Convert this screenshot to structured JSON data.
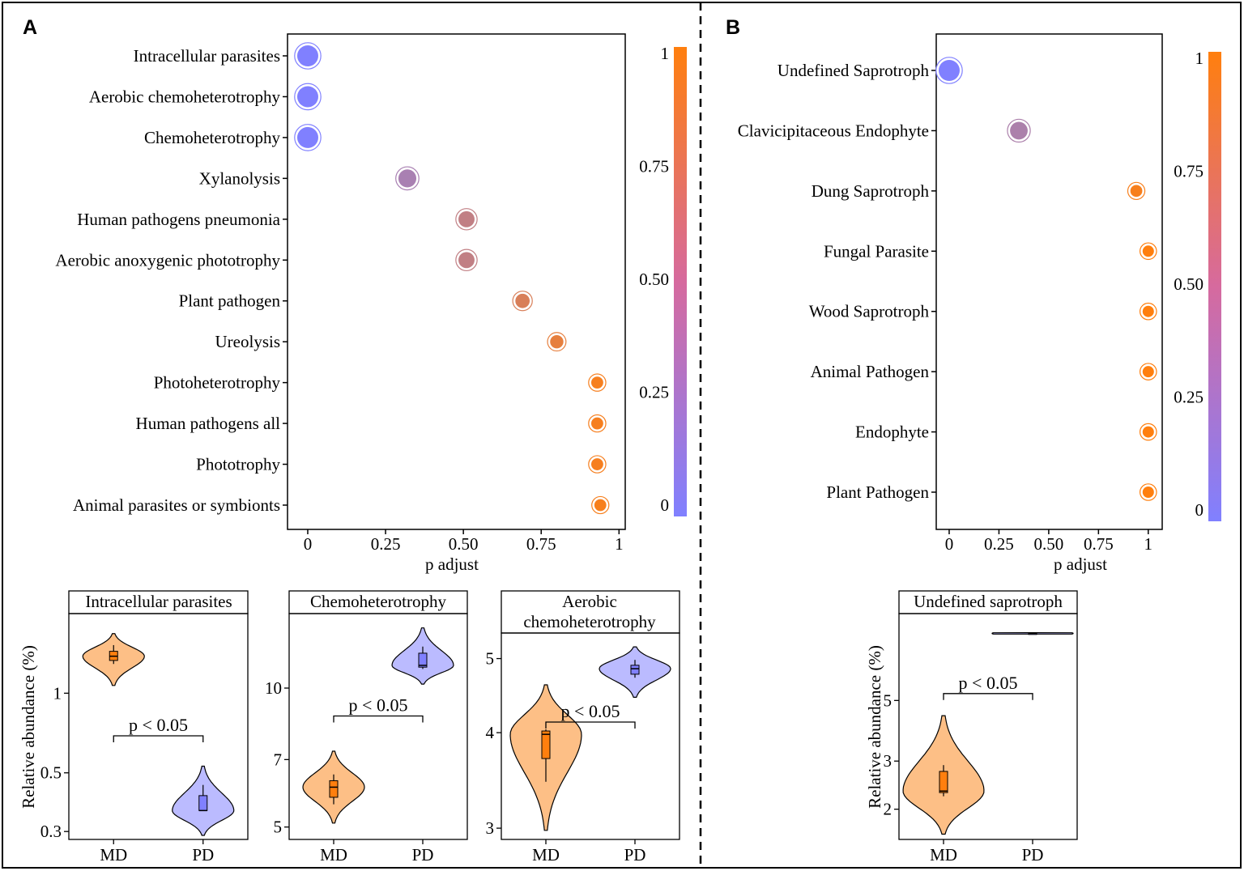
{
  "panels": [
    {
      "letter": "A"
    },
    {
      "letter": "B"
    }
  ],
  "colors": {
    "low": "#8080FF",
    "high": "#FF7F0E",
    "violin_md": "#FDBF86",
    "violin_pd": "#BBBBFF",
    "box_md": "#FF7F0E",
    "box_pd": "#8080FF"
  },
  "chart_data": [
    {
      "id": "dotA",
      "type": "scatter",
      "panel": "A",
      "xlabel": "p adjust",
      "xlim": [
        -0.065,
        1.02
      ],
      "xticks": [
        0,
        0.25,
        0.5,
        0.75,
        1
      ],
      "xtick_labels": [
        "0",
        "0.25",
        "0.50",
        "0.75",
        "1"
      ],
      "categories": [
        "Intracellular parasites",
        "Aerobic chemoheterotrophy",
        "Chemoheterotrophy",
        "Xylanolysis",
        "Human pathogens pneumonia",
        "Aerobic anoxygenic phototrophy",
        "Plant pathogen",
        "Ureolysis",
        "Photoheterotrophy",
        "Human pathogens all",
        "Phototrophy",
        "Animal parasites or symbionts"
      ],
      "values": [
        0,
        0,
        0,
        0.32,
        0.51,
        0.51,
        0.69,
        0.8,
        0.93,
        0.93,
        0.93,
        0.94
      ],
      "colorbar": {
        "ticks": [
          0,
          0.25,
          0.5,
          0.75,
          1
        ],
        "labels": [
          "0",
          "0.25",
          "0.50",
          "0.75",
          "1"
        ]
      }
    },
    {
      "id": "dotB",
      "type": "scatter",
      "panel": "B",
      "xlabel": "p adjust",
      "xlim": [
        -0.065,
        1.07
      ],
      "xticks": [
        0,
        0.25,
        0.5,
        0.75,
        1
      ],
      "xtick_labels": [
        "0",
        "0.25",
        "0.50",
        "0.75",
        "1"
      ],
      "categories": [
        "Undefined Saprotroph",
        "Clavicipitaceous Endophyte",
        "Dung Saprotroph",
        "Fungal Parasite",
        "Wood Saprotroph",
        "Animal Pathogen",
        "Endophyte",
        "Plant Pathogen"
      ],
      "values": [
        0,
        0.35,
        0.94,
        1,
        1,
        1,
        1,
        1
      ],
      "colorbar": {
        "ticks": [
          0,
          0.25,
          0.5,
          0.75,
          1
        ],
        "labels": [
          "0",
          "0.25",
          "0.50",
          "0.75",
          "1"
        ]
      }
    },
    {
      "id": "vio1",
      "type": "violin",
      "panel": "A",
      "title": "Intracellular parasites",
      "ylabel": "Relative abundance (%)",
      "categories": [
        "MD",
        "PD"
      ],
      "ylim": [
        0.28,
        2.0
      ],
      "yticks": [
        0.3,
        0.5,
        1
      ],
      "ytick_labels": [
        "0.3",
        "0.5",
        "1"
      ],
      "annotation": "p < 0.05",
      "bracket_y": 0.69,
      "series": [
        {
          "name": "MD",
          "min": 1.07,
          "max": 1.68,
          "q1": 1.33,
          "median": 1.38,
          "q3": 1.44,
          "wlo": 1.29,
          "whi": 1.52
        },
        {
          "name": "PD",
          "min": 0.29,
          "max": 0.53,
          "q1": 0.36,
          "median": 0.36,
          "q3": 0.41,
          "wlo": 0.36,
          "whi": 0.45
        }
      ]
    },
    {
      "id": "vio2",
      "type": "violin",
      "panel": "A",
      "title": "Chemoheterotrophy",
      "categories": [
        "MD",
        "PD"
      ],
      "ylim": [
        4.7,
        14.5
      ],
      "yticks": [
        5,
        7,
        10
      ],
      "ytick_labels": [
        "5",
        "7",
        "10"
      ],
      "annotation": "p < 0.05",
      "bracket_y": 8.7,
      "series": [
        {
          "name": "MD",
          "min": 5.1,
          "max": 7.3,
          "q1": 5.8,
          "median": 6.1,
          "q3": 6.3,
          "wlo": 5.6,
          "whi": 6.5
        },
        {
          "name": "PD",
          "min": 10.2,
          "max": 13.5,
          "q1": 11.1,
          "median": 11.2,
          "q3": 11.9,
          "wlo": 11.0,
          "whi": 12.3
        }
      ]
    },
    {
      "id": "vio3",
      "type": "violin",
      "panel": "A",
      "title": "Aerobic chemoheterotrophy",
      "categories": [
        "MD",
        "PD"
      ],
      "ylim": [
        2.9,
        5.4
      ],
      "yticks": [
        3,
        4,
        5
      ],
      "ytick_labels": [
        "3",
        "4",
        "5"
      ],
      "annotation": "p < 0.05",
      "bracket_y": 4.13,
      "series": [
        {
          "name": "MD",
          "min": 2.98,
          "max": 4.62,
          "q1": 3.7,
          "median": 3.98,
          "q3": 4.02,
          "wlo": 3.45,
          "whi": 4.04
        },
        {
          "name": "PD",
          "min": 4.45,
          "max": 5.18,
          "q1": 4.77,
          "median": 4.85,
          "q3": 4.9,
          "wlo": 4.72,
          "whi": 4.98
        }
      ]
    },
    {
      "id": "vio4",
      "type": "violin",
      "panel": "B",
      "title": "Undefined saprotroph",
      "ylabel": "Relative abundance (%)",
      "categories": [
        "MD",
        "PD"
      ],
      "ylim": [
        1.55,
        10.4
      ],
      "yticks": [
        2,
        3,
        5
      ],
      "ytick_labels": [
        "2",
        "3",
        "5"
      ],
      "annotation": "p < 0.05",
      "bracket_y": 5.3,
      "series": [
        {
          "name": "MD",
          "min": 1.62,
          "max": 4.4,
          "q1": 2.3,
          "median": 2.33,
          "q3": 2.75,
          "wlo": 2.23,
          "whi": 2.9
        },
        {
          "name": "PD",
          "min": 8.75,
          "max": 8.85,
          "q1": 8.79,
          "median": 8.8,
          "q3": 8.81,
          "wlo": 8.78,
          "whi": 8.82
        }
      ]
    }
  ]
}
